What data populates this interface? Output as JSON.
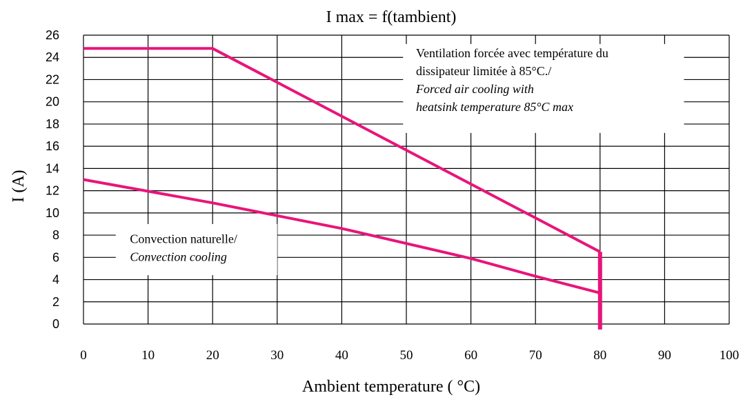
{
  "chart_data": {
    "type": "line",
    "title": "I max = f(tambient)",
    "xlabel": "Ambient temperature ( °C)",
    "ylabel": "I (A)",
    "xlim": [
      0,
      100
    ],
    "ylim": [
      0,
      26
    ],
    "x_ticks": [
      "0",
      "10",
      "20",
      "30",
      "40",
      "50",
      "60",
      "70",
      "80",
      "90",
      "100"
    ],
    "y_ticks": [
      "0",
      "2",
      "4",
      "6",
      "8",
      "10",
      "12",
      "14",
      "16",
      "18",
      "20",
      "22",
      "24",
      "26"
    ],
    "grid": true,
    "line_color": "#e8157a",
    "series": [
      {
        "x": [
          0,
          20,
          80
        ],
        "y": [
          24.8,
          24.8,
          6.5
        ]
      },
      {
        "x": [
          0,
          20,
          40,
          60,
          70,
          80
        ],
        "y": [
          13.0,
          10.9,
          8.6,
          5.9,
          4.3,
          2.8
        ]
      }
    ],
    "cutoff": {
      "x": 80,
      "y_from": 6.5,
      "y_to": -0.5
    },
    "annotations": [
      {
        "lines": [
          {
            "text": "Ventilation forcée avec température du",
            "italic": false
          },
          {
            "text": "dissipateur limitée à 85°C./",
            "italic": false
          },
          {
            "text": "Forced air cooling with",
            "italic": true
          },
          {
            "text": "heatsink temperature 85°C max",
            "italic": true
          }
        ],
        "anchor": {
          "x": 51.5,
          "y": 24.0
        },
        "box": {
          "x0": 49.5,
          "x1": 93,
          "y0": 17.2,
          "y1": 25.2
        }
      },
      {
        "lines": [
          {
            "text": "Convection naturelle/",
            "italic": false
          },
          {
            "text": "Convection cooling",
            "italic": true
          }
        ],
        "anchor": {
          "x": 7.2,
          "y": 7.3
        },
        "box": {
          "x0": 5,
          "x1": 30,
          "y0": 4.4,
          "y1": 9.0
        }
      }
    ]
  }
}
